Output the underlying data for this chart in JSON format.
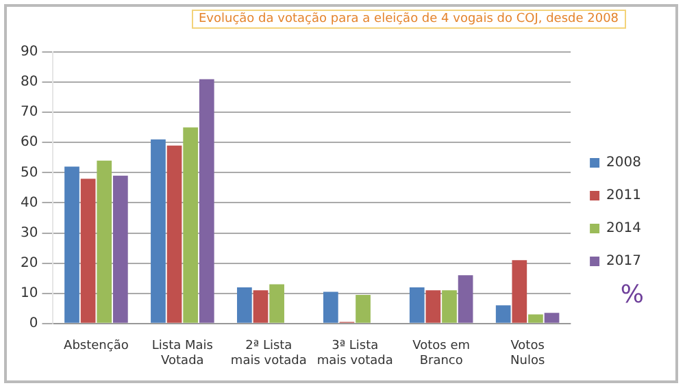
{
  "chart_data": {
    "type": "bar",
    "title": "Evolução da votação para a eleição de 4 vogais do COJ, desde 2008",
    "categories": [
      "Abstenção",
      "Lista Mais Votada",
      "2ª Lista mais votada",
      "3ª Lista mais votada",
      "Votos em Branco",
      "Votos Nulos"
    ],
    "series": [
      {
        "name": "2008",
        "color": "#4f81bd",
        "values": [
          52,
          61,
          12,
          10.5,
          12,
          6
        ]
      },
      {
        "name": "2011",
        "color": "#c0504d",
        "values": [
          48,
          59,
          11,
          0.5,
          11,
          21
        ]
      },
      {
        "name": "2014",
        "color": "#9bbb59",
        "values": [
          54,
          65,
          13,
          9.5,
          11,
          3
        ]
      },
      {
        "name": "2017",
        "color": "#8064a2",
        "values": [
          49,
          81,
          0,
          0,
          16,
          3.5
        ]
      }
    ],
    "ylim": [
      0,
      90
    ],
    "yticks": [
      0,
      10,
      20,
      30,
      40,
      50,
      60,
      70,
      80,
      90
    ],
    "grid": "y",
    "legend": "right",
    "annotations": [
      "%"
    ]
  }
}
